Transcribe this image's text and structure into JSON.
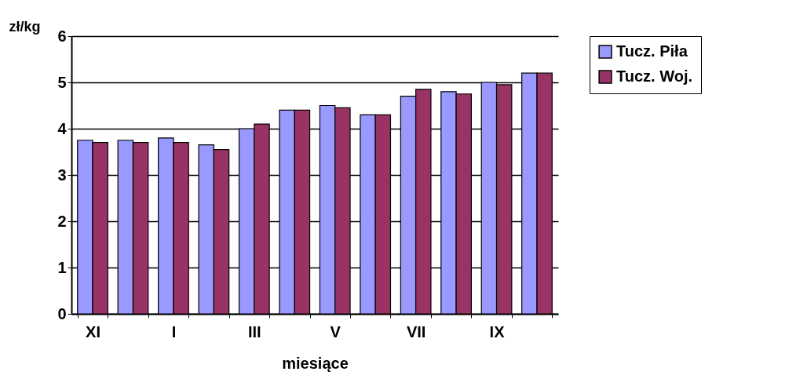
{
  "chart_data": {
    "type": "bar",
    "xlabel": "miesiące",
    "ylabel": "zł/kg",
    "categories": [
      "XI",
      null,
      "I",
      null,
      "III",
      null,
      "V",
      null,
      "VII",
      null,
      "IX",
      null
    ],
    "series": [
      {
        "name": "Tucz. Piła",
        "color": "#9999ff",
        "values": [
          3.75,
          3.75,
          3.8,
          3.65,
          4.0,
          4.4,
          4.5,
          4.3,
          4.7,
          4.8,
          5.0,
          5.2
        ]
      },
      {
        "name": "Tucz. Woj.",
        "color": "#993366",
        "values": [
          3.7,
          3.7,
          3.7,
          3.55,
          4.1,
          4.4,
          4.45,
          4.3,
          4.85,
          4.75,
          4.95,
          5.2
        ]
      }
    ],
    "ylim": [
      0,
      6
    ],
    "yticks": [
      0,
      1,
      2,
      3,
      4,
      5,
      6
    ],
    "grid": "y",
    "legend": "right"
  }
}
